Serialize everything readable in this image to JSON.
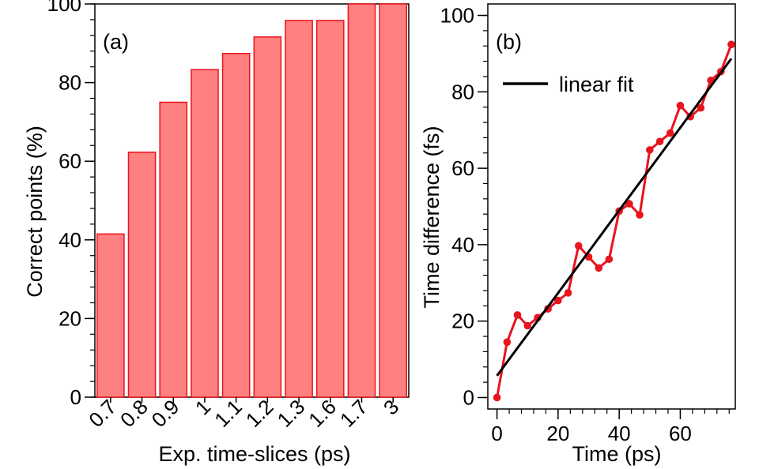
{
  "chart_data": [
    {
      "type": "bar",
      "panel_label": "(a)",
      "categories": [
        "0.7",
        "0.8",
        "0.9",
        "1",
        "1.1",
        "1.2",
        "1.3",
        "1.6",
        "1.7",
        "3"
      ],
      "values": [
        41.5,
        62.3,
        75.0,
        83.3,
        87.4,
        91.6,
        95.8,
        95.8,
        100,
        100
      ],
      "xlabel": "Exp. time-slices (ps)",
      "ylabel": "Correct points (%)",
      "ylim": [
        0,
        100
      ],
      "yticks": [
        0,
        20,
        40,
        60,
        80,
        100
      ],
      "bar_color": "#ff8080",
      "bar_edge_color": "#e8141e",
      "grid": false
    },
    {
      "type": "line",
      "panel_label": "(b)",
      "xlabel": "Time (ps)",
      "ylabel": "Time difference (fs)",
      "xlim": [
        -3,
        78
      ],
      "ylim": [
        -3,
        103
      ],
      "xticks": [
        0,
        20,
        40,
        60
      ],
      "yticks": [
        0,
        20,
        40,
        60,
        80,
        100
      ],
      "grid": false,
      "legend": {
        "placement": "top-left",
        "entries": [
          "linear fit"
        ]
      },
      "series": [
        {
          "color": "#e8141e",
          "marker": "circle",
          "x": [
            0,
            3.3,
            6.7,
            10,
            13.3,
            16.7,
            20,
            23.3,
            26.7,
            30,
            33.3,
            36.7,
            40,
            43.3,
            46.7,
            50,
            53.3,
            56.7,
            60,
            63.3,
            66.7,
            70,
            73.3,
            76.7
          ],
          "y": [
            0,
            14.5,
            21.6,
            18.8,
            20.9,
            23.2,
            25.4,
            27.4,
            39.7,
            36.8,
            33.9,
            36.2,
            48.8,
            50.7,
            47.8,
            64.8,
            67.0,
            69.2,
            76.4,
            73.5,
            75.8,
            83.0,
            85.3,
            92.4
          ]
        },
        {
          "name": "linear fit",
          "color": "#000000",
          "x": [
            0,
            76.7
          ],
          "y": [
            5.7,
            88.7
          ]
        }
      ]
    }
  ]
}
